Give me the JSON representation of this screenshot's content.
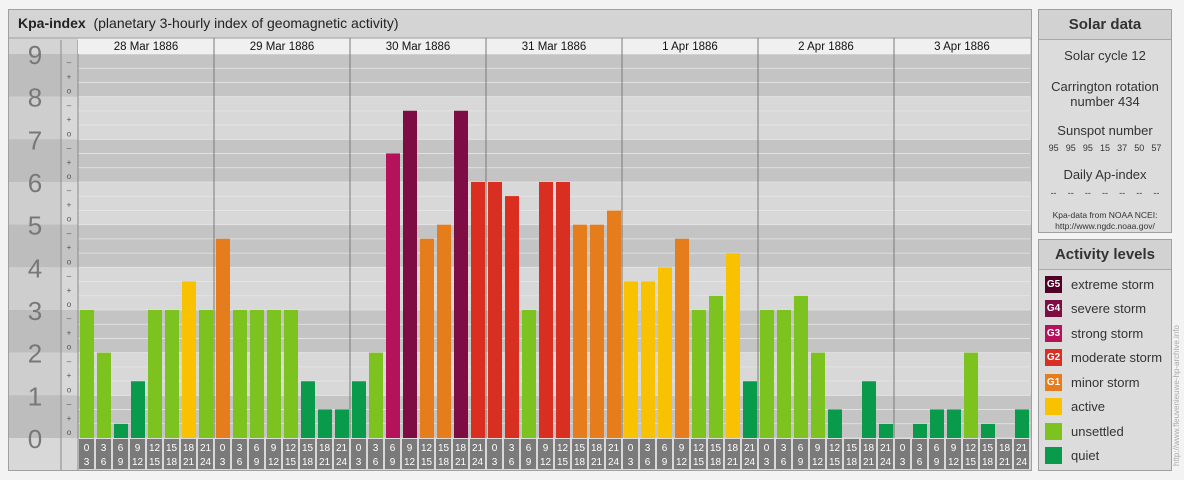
{
  "header": {
    "title_bold": "Kpa-index",
    "title_rest": "(planetary 3-hourly index of geomagnetic activity)"
  },
  "chart_data": {
    "type": "bar",
    "title": "Kpa-index (planetary 3-hourly index of geomagnetic activity)",
    "xlabel": "",
    "ylabel": "",
    "ylim": [
      0,
      9
    ],
    "y_ticks": [
      "0",
      "1",
      "2",
      "3",
      "4",
      "5",
      "6",
      "7",
      "8",
      "9"
    ],
    "y_fraction_marks": [
      "o",
      "+",
      "–"
    ],
    "days": [
      "28 Mar 1886",
      "29 Mar 1886",
      "30 Mar 1886",
      "31 Mar 1886",
      "1 Apr 1886",
      "2 Apr 1886",
      "3 Apr 1886"
    ],
    "interval_labels": [
      [
        "0",
        "3"
      ],
      [
        "3",
        "6"
      ],
      [
        "6",
        "9"
      ],
      [
        "9",
        "12"
      ],
      [
        "12",
        "15"
      ],
      [
        "15",
        "18"
      ],
      [
        "18",
        "21"
      ],
      [
        "21",
        "24"
      ]
    ],
    "values": [
      [
        3.0,
        2.0,
        0.33,
        1.33,
        3.0,
        3.0,
        3.67,
        3.0
      ],
      [
        4.67,
        3.0,
        3.0,
        3.0,
        3.0,
        1.33,
        0.67,
        0.67
      ],
      [
        1.33,
        2.0,
        6.67,
        7.67,
        4.67,
        5.0,
        7.67,
        6.0
      ],
      [
        6.0,
        5.67,
        3.0,
        6.0,
        6.0,
        5.0,
        5.0,
        5.33
      ],
      [
        3.67,
        3.67,
        4.0,
        4.67,
        3.0,
        3.33,
        4.33,
        1.33
      ],
      [
        3.0,
        3.0,
        3.33,
        2.0,
        0.67,
        0.0,
        1.33,
        0.33
      ],
      [
        0.0,
        0.33,
        0.67,
        0.67,
        2.0,
        0.33,
        0.0,
        0.67
      ]
    ],
    "grid": true,
    "legend": "right"
  },
  "colors": {
    "quiet": "#0a9a4c",
    "unsettled": "#7dc31f",
    "active": "#f8c200",
    "minor": "#e57d1c",
    "moderate": "#d92f21",
    "strong": "#b4125a",
    "severe": "#7d0d43",
    "extreme": "#520027"
  },
  "solar": {
    "heading": "Solar data",
    "cycle": "Solar cycle 12",
    "carrington_line1": "Carrington rotation",
    "carrington_line2": "number 434",
    "sunspot_heading": "Sunspot number",
    "sunspot_values": [
      "95",
      "95",
      "95",
      "15",
      "37",
      "50",
      "57"
    ],
    "ap_heading": "Daily Ap-index",
    "ap_values": [
      "--",
      "--",
      "--",
      "--",
      "--",
      "--",
      "--"
    ],
    "source_line1": "Kpa-data from NOAA NCEI:",
    "source_line2": "http://www.ngdc.noaa.gov/"
  },
  "activity": {
    "heading": "Activity levels",
    "levels": [
      {
        "code": "G5",
        "label": "extreme storm",
        "color": "#520027",
        "icon": "g5-swatch"
      },
      {
        "code": "G4",
        "label": "severe storm",
        "color": "#7d0d43",
        "icon": "g4-swatch"
      },
      {
        "code": "G3",
        "label": "strong storm",
        "color": "#b4125a",
        "icon": "g3-swatch"
      },
      {
        "code": "G2",
        "label": "moderate storm",
        "color": "#d92f21",
        "icon": "g2-swatch"
      },
      {
        "code": "G1",
        "label": "minor storm",
        "color": "#e57d1c",
        "icon": "g1-swatch"
      },
      {
        "code": "",
        "label": "active",
        "color": "#f8c200",
        "icon": "active-swatch"
      },
      {
        "code": "",
        "label": "unsettled",
        "color": "#7dc31f",
        "icon": "unsettled-swatch"
      },
      {
        "code": "",
        "label": "quiet",
        "color": "#0a9a4c",
        "icon": "quiet-swatch"
      }
    ]
  },
  "side_text": "http://www.fleuvenieuwe-hp-archive.info"
}
